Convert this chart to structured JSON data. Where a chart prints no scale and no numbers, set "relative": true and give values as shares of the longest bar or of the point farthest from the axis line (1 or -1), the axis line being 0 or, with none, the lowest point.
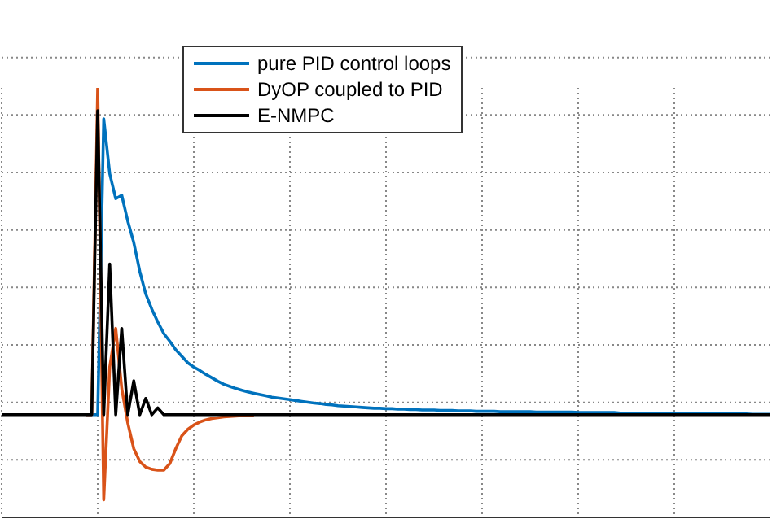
{
  "chart_data": {
    "type": "line",
    "relative": true,
    "grid": true,
    "legend": "top",
    "marker": "none",
    "line_style": "solid",
    "categories": [
      null,
      null,
      null,
      null,
      null,
      null,
      null,
      null,
      null,
      null,
      null,
      null,
      null,
      null,
      null,
      null,
      null,
      null,
      null,
      null,
      null,
      null,
      null,
      null,
      null,
      null,
      null,
      null,
      null,
      null,
      null,
      null,
      null,
      null,
      null,
      null,
      null,
      null,
      null,
      null,
      null,
      null,
      null,
      null,
      null,
      null,
      null,
      null,
      null,
      null,
      null,
      null,
      null,
      null,
      null,
      null,
      null,
      null,
      null,
      null,
      null,
      null,
      null,
      null,
      null,
      null,
      null,
      null,
      null,
      null,
      null,
      null,
      null,
      null,
      null,
      null,
      null,
      null,
      null,
      null,
      null,
      null,
      null,
      null,
      null,
      null,
      null,
      null,
      null,
      null,
      null,
      null,
      null,
      null,
      null,
      null,
      null,
      null,
      null,
      null,
      null,
      null,
      null,
      null,
      null,
      null,
      null,
      null,
      null,
      null,
      null,
      null,
      null,
      null,
      null,
      null,
      null,
      null,
      null,
      null,
      null,
      null,
      null,
      null,
      null,
      null,
      null,
      null,
      null
    ],
    "series": [
      {
        "name": "pure PID control loops",
        "color": "#0072bd",
        "values": [
          null,
          null,
          null,
          null,
          null,
          null,
          null,
          null,
          null,
          null,
          null,
          null,
          null,
          null,
          0.239,
          0.239,
          0.239,
          0.928,
          0.8,
          0.742,
          0.75,
          0.69,
          0.64,
          0.573,
          0.52,
          0.485,
          0.455,
          0.428,
          0.41,
          0.39,
          0.375,
          0.36,
          0.35,
          0.342,
          0.333,
          0.325,
          0.317,
          0.31,
          0.305,
          0.3,
          0.296,
          0.292,
          0.289,
          0.286,
          0.283,
          0.28,
          0.278,
          0.276,
          0.274,
          0.272,
          0.27,
          0.268,
          0.266,
          0.265,
          0.263,
          0.262,
          0.26,
          0.259,
          0.258,
          0.257,
          0.256,
          0.255,
          0.254,
          0.254,
          0.253,
          0.253,
          0.252,
          0.252,
          0.251,
          0.251,
          0.25,
          0.25,
          0.25,
          0.249,
          0.249,
          0.249,
          0.248,
          0.248,
          0.248,
          0.247,
          0.247,
          0.247,
          0.247,
          0.246,
          0.246,
          0.246,
          0.246,
          0.246,
          0.246,
          0.245,
          0.245,
          0.245,
          0.245,
          0.245,
          0.245,
          0.245,
          0.244,
          0.244,
          0.244,
          0.244,
          0.244,
          0.244,
          0.244,
          0.243,
          0.243,
          0.243,
          0.243,
          0.243,
          0.243,
          0.242,
          0.242,
          0.242,
          0.242,
          0.242,
          0.242,
          0.242,
          0.242,
          0.242,
          0.242,
          0.241,
          0.241,
          0.241,
          0.241,
          0.241,
          0.241,
          0.24,
          0.24,
          0.24,
          0.24
        ]
      },
      {
        "name": "DyOP coupled to PID",
        "color": "#d95319",
        "values": [
          null,
          null,
          null,
          null,
          null,
          null,
          null,
          null,
          null,
          null,
          null,
          null,
          null,
          null,
          0.239,
          0.239,
          1,
          0.041,
          0.35,
          0.44,
          0.3,
          0.22,
          0.16,
          0.13,
          0.117,
          0.112,
          0.11,
          0.11,
          0.125,
          0.16,
          0.19,
          0.205,
          0.215,
          0.222,
          0.227,
          0.23,
          0.232,
          0.234,
          0.235,
          0.236,
          0.237,
          0.237,
          0.238,
          null,
          null,
          null,
          null,
          null,
          null,
          null,
          null,
          null,
          null,
          null,
          null,
          null,
          null,
          null,
          null,
          null,
          null,
          null,
          null,
          null,
          null,
          null,
          null,
          null,
          null,
          null,
          null,
          null,
          null,
          null,
          null,
          null,
          null,
          null,
          null,
          null,
          null,
          null,
          null,
          null,
          null,
          null,
          null,
          null,
          null,
          null,
          null,
          null,
          null,
          null,
          null,
          null,
          null,
          null,
          null,
          null,
          null,
          null,
          null,
          null,
          null,
          null,
          null,
          null,
          null,
          null,
          null,
          null,
          null,
          null,
          null,
          null,
          null,
          null,
          null,
          null,
          null,
          null,
          null,
          null,
          null,
          null,
          null,
          null,
          null
        ]
      },
      {
        "name": "E-NMPC",
        "color": "#000000",
        "values": [
          0.239,
          0.239,
          0.239,
          0.239,
          0.239,
          0.239,
          0.239,
          0.239,
          0.239,
          0.239,
          0.239,
          0.239,
          0.239,
          0.239,
          0.239,
          0.239,
          0.947,
          0.239,
          0.59,
          0.239,
          0.44,
          0.239,
          0.318,
          0.239,
          0.277,
          0.239,
          0.255,
          0.239,
          0.239,
          0.239,
          0.239,
          0.239,
          0.239,
          0.239,
          0.239,
          0.239,
          0.239,
          0.239,
          0.239,
          0.239,
          0.239,
          0.239,
          0.239,
          0.239,
          0.239,
          0.239,
          0.239,
          0.239,
          0.239,
          0.239,
          0.239,
          0.239,
          0.239,
          0.239,
          0.239,
          0.239,
          0.239,
          0.239,
          0.239,
          0.239,
          0.239,
          0.239,
          0.239,
          0.239,
          0.239,
          0.239,
          0.239,
          0.239,
          0.239,
          0.239,
          0.239,
          0.239,
          0.239,
          0.239,
          0.239,
          0.239,
          0.239,
          0.239,
          0.239,
          0.239,
          0.239,
          0.239,
          0.239,
          0.239,
          0.239,
          0.239,
          0.239,
          0.239,
          0.239,
          0.239,
          0.239,
          0.239,
          0.239,
          0.239,
          0.239,
          0.239,
          0.239,
          0.239,
          0.239,
          0.239,
          0.239,
          0.239,
          0.239,
          0.239,
          0.239,
          0.239,
          0.239,
          0.239,
          0.239,
          0.239,
          0.239,
          0.239,
          0.239,
          0.239,
          0.239,
          0.239,
          0.239,
          0.239,
          0.239,
          0.239,
          0.239,
          0.239,
          0.239,
          0.239,
          0.239,
          0.239,
          0.239,
          0.239,
          0.239
        ]
      }
    ]
  }
}
